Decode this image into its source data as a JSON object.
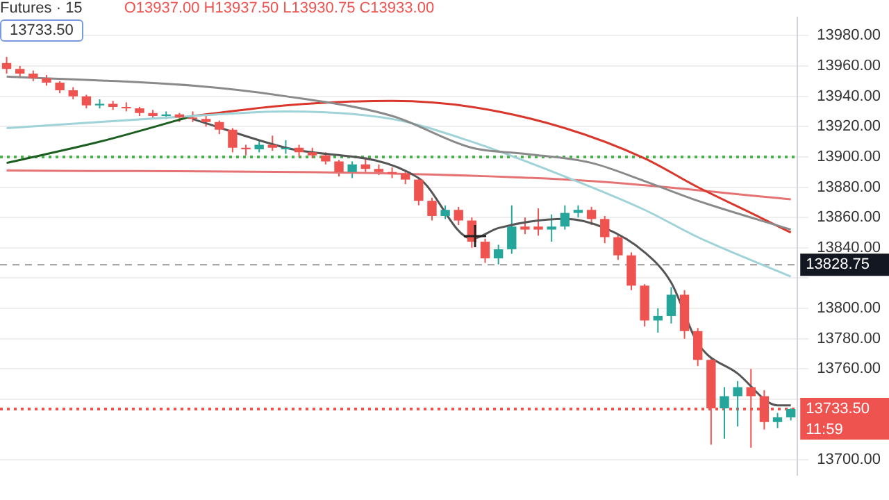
{
  "chart_data": {
    "type": "candlestick",
    "title": "Futures · 15",
    "categories": [
      null,
      null,
      null,
      null,
      null,
      null,
      null,
      null,
      null,
      null,
      null,
      null,
      null,
      null,
      null,
      null,
      null,
      null,
      null,
      null,
      null,
      null,
      null,
      null,
      null,
      null,
      null,
      null,
      null,
      null,
      null,
      null,
      null,
      null,
      null,
      null,
      null,
      null,
      null,
      null,
      null,
      null,
      null,
      null,
      null,
      null,
      null,
      null,
      null,
      null,
      null,
      null,
      null,
      null,
      null,
      null,
      null,
      null,
      null,
      null
    ],
    "ohlc": [
      [
        13962,
        13966,
        13955,
        13958
      ],
      [
        13958,
        13960,
        13952,
        13955
      ],
      [
        13955,
        13957,
        13950,
        13952
      ],
      [
        13952,
        13954,
        13947,
        13949
      ],
      [
        13949,
        13950,
        13942,
        13944
      ],
      [
        13944,
        13946,
        13938,
        13940
      ],
      [
        13940,
        13941,
        13932,
        13934
      ],
      [
        13934,
        13938,
        13932,
        13935
      ],
      [
        13935,
        13937,
        13931,
        13933
      ],
      [
        13933,
        13936,
        13930,
        13932
      ],
      [
        13932,
        13933,
        13927,
        13929
      ],
      [
        13929,
        13931,
        13925,
        13927
      ],
      [
        13927,
        13930,
        13925,
        13928
      ],
      [
        13928,
        13929,
        13923,
        13926
      ],
      [
        13926,
        13930,
        13923,
        13925
      ],
      [
        13925,
        13927,
        13920,
        13923
      ],
      [
        13923,
        13924,
        13915,
        13918
      ],
      [
        13918,
        13919,
        13903,
        13906
      ],
      [
        13906,
        13908,
        13901,
        13905
      ],
      [
        13905,
        13911,
        13903,
        13908
      ],
      [
        13908,
        13914,
        13904,
        13906
      ],
      [
        13905,
        13911,
        13902,
        13906
      ],
      [
        13906,
        13908,
        13900,
        13903
      ],
      [
        13903,
        13906,
        13899,
        13901
      ],
      [
        13901,
        13903,
        13895,
        13897
      ],
      [
        13897,
        13898,
        13887,
        13890
      ],
      [
        13890,
        13897,
        13886,
        13895
      ],
      [
        13895,
        13899,
        13890,
        13892
      ],
      [
        13892,
        13895,
        13888,
        13890
      ],
      [
        13890,
        13893,
        13886,
        13889
      ],
      [
        13889,
        13891,
        13882,
        13885
      ],
      [
        13885,
        13886,
        13868,
        13871
      ],
      [
        13871,
        13873,
        13858,
        13861
      ],
      [
        13861,
        13868,
        13859,
        13865
      ],
      [
        13865,
        13867,
        13855,
        13858
      ],
      [
        13858,
        13860,
        13840,
        13844
      ],
      [
        13844,
        13846,
        13830,
        13833
      ],
      [
        13833,
        13842,
        13829,
        13839
      ],
      [
        13839,
        13868,
        13836,
        13854
      ],
      [
        13854,
        13860,
        13849,
        13852
      ],
      [
        13854,
        13866,
        13848,
        13852
      ],
      [
        13852,
        13862,
        13844,
        13854
      ],
      [
        13854,
        13868,
        13852,
        13863
      ],
      [
        13863,
        13868,
        13860,
        13865
      ],
      [
        13865,
        13867,
        13855,
        13859
      ],
      [
        13859,
        13861,
        13843,
        13847
      ],
      [
        13847,
        13849,
        13832,
        13835
      ],
      [
        13835,
        13837,
        13812,
        13815
      ],
      [
        13815,
        13816,
        13788,
        13792
      ],
      [
        13792,
        13800,
        13784,
        13795
      ],
      [
        13795,
        13814,
        13790,
        13809
      ],
      [
        13809,
        13812,
        13780,
        13785
      ],
      [
        13785,
        13787,
        13762,
        13766
      ],
      [
        13766,
        13768,
        13710,
        13734
      ],
      [
        13734,
        13748,
        13714,
        13742
      ],
      [
        13742,
        13752,
        13722,
        13748
      ],
      [
        13748,
        13760,
        13708,
        13742
      ],
      [
        13742,
        13746,
        13720,
        13725
      ],
      [
        13725,
        13731,
        13721,
        13728
      ],
      [
        13728,
        13734,
        13726,
        13733.5
      ]
    ],
    "colors": [
      "#ef5350",
      "#ef5350",
      "#ef5350",
      "#ef5350",
      "#ef5350",
      "#ef5350",
      "#ef5350",
      "#26a69a",
      "#ef5350",
      "#ef5350",
      "#ef5350",
      "#ef5350",
      "#26a69a",
      "#ef5350",
      "#ef5350",
      "#ef5350",
      "#ef5350",
      "#ef5350",
      "#ef5350",
      "#26a69a",
      "#ef5350",
      "#26a69a",
      "#ef5350",
      "#ef5350",
      "#ef5350",
      "#ef5350",
      "#26a69a",
      "#ef5350",
      "#ef5350",
      "#ef5350",
      "#ef5350",
      "#ef5350",
      "#ef5350",
      "#26a69a",
      "#ef5350",
      "#ef5350",
      "#ef5350",
      "#26a69a",
      "#26a69a",
      "#ef5350",
      "#ef5350",
      "#26a69a",
      "#26a69a",
      "#26a69a",
      "#ef5350",
      "#ef5350",
      "#ef5350",
      "#ef5350",
      "#ef5350",
      "#26a69a",
      "#26a69a",
      "#ef5350",
      "#ef5350",
      "#ef5350",
      "#26a69a",
      "#26a69a",
      "#ef5350",
      "#ef5350",
      "#26a69a",
      "#26a69a"
    ],
    "series": [
      {
        "type": "line",
        "color": "#555555",
        "values": [
          null,
          null,
          null,
          null,
          null,
          null,
          null,
          null,
          null,
          null,
          null,
          null,
          null,
          null,
          13925,
          null,
          null,
          null,
          null,
          null,
          null,
          13906,
          null,
          null,
          null,
          null,
          null,
          null,
          null,
          null,
          null,
          13886,
          null,
          null,
          null,
          13846,
          null,
          13853,
          null,
          null,
          null,
          null,
          13859,
          null,
          null,
          13853,
          null,
          null,
          13837,
          null,
          13817,
          null,
          13777,
          null,
          null,
          13757,
          null,
          null,
          13736,
          13736
        ]
      },
      {
        "type": "line",
        "color": "#8a8a8a",
        "values": [
          13953,
          null,
          null,
          null,
          null,
          null,
          null,
          null,
          null,
          null,
          null,
          null,
          null,
          null,
          13947,
          null,
          null,
          null,
          null,
          null,
          null,
          13940,
          null,
          null,
          null,
          null,
          null,
          null,
          null,
          13927,
          null,
          null,
          null,
          null,
          null,
          13906,
          null,
          null,
          null,
          13902,
          null,
          null,
          null,
          null,
          13896,
          null,
          null,
          null,
          13884,
          null,
          null,
          null,
          13871,
          null,
          null,
          null,
          null,
          null,
          null,
          13852
        ]
      },
      {
        "type": "line",
        "color": "#9fd3d8",
        "values": [
          13919,
          null,
          null,
          null,
          null,
          null,
          null,
          null,
          null,
          null,
          null,
          null,
          null,
          null,
          13927,
          null,
          null,
          null,
          null,
          null,
          null,
          13930,
          null,
          null,
          null,
          null,
          null,
          null,
          null,
          13925,
          null,
          null,
          null,
          null,
          null,
          13910,
          null,
          null,
          null,
          null,
          null,
          null,
          13887,
          null,
          null,
          null,
          null,
          null,
          13865,
          null,
          null,
          null,
          13847,
          null,
          null,
          null,
          null,
          null,
          null,
          13821
        ]
      },
      {
        "type": "line",
        "color": "#d9362c",
        "values": [
          null,
          null,
          null,
          null,
          null,
          null,
          null,
          null,
          null,
          null,
          null,
          null,
          null,
          null,
          13927,
          null,
          null,
          null,
          null,
          null,
          null,
          13934,
          null,
          null,
          null,
          null,
          null,
          null,
          null,
          13937,
          null,
          null,
          null,
          null,
          null,
          13933,
          null,
          null,
          null,
          null,
          null,
          null,
          13919,
          null,
          null,
          null,
          null,
          null,
          13899,
          null,
          null,
          null,
          13880,
          null,
          null,
          null,
          13863,
          null,
          null,
          13850
        ]
      },
      {
        "type": "line",
        "color": "#1b5e20",
        "values": [
          13896,
          null,
          null,
          null,
          null,
          null,
          null,
          13910,
          null,
          null,
          null,
          null,
          null,
          null,
          13927,
          null,
          null,
          null,
          null,
          null,
          null,
          null,
          null,
          null,
          null,
          null,
          null,
          null,
          null,
          null,
          null,
          null,
          null,
          null,
          null,
          null,
          null,
          null,
          null,
          null,
          null,
          null,
          null,
          null,
          null,
          null,
          null,
          null,
          null,
          null,
          null,
          null,
          null,
          null,
          null,
          null,
          null,
          null,
          null,
          null
        ]
      },
      {
        "type": "line",
        "color": "#e57373",
        "values": [
          13891,
          null,
          null,
          null,
          null,
          null,
          null,
          null,
          null,
          null,
          null,
          null,
          null,
          null,
          null,
          null,
          null,
          null,
          null,
          null,
          null,
          null,
          null,
          null,
          null,
          null,
          null,
          null,
          null,
          13889,
          null,
          null,
          null,
          null,
          null,
          null,
          null,
          null,
          null,
          null,
          null,
          null,
          null,
          null,
          13884,
          null,
          null,
          null,
          null,
          null,
          null,
          null,
          null,
          null,
          null,
          null,
          null,
          null,
          null,
          13872
        ]
      }
    ],
    "ylim": [
      13690,
      13992
    ],
    "yticks": [
      {
        "value": 13700,
        "label": "13700.00"
      },
      {
        "value": 13740,
        "label": null
      },
      {
        "value": 13760,
        "label": "13760.00"
      },
      {
        "value": 13780,
        "label": "13780.00"
      },
      {
        "value": 13800,
        "label": "13800.00"
      },
      {
        "value": 13820,
        "label": null
      },
      {
        "value": 13840,
        "label": "13840.00"
      },
      {
        "value": 13860,
        "label": "13860.00"
      },
      {
        "value": 13880,
        "label": "13880.00"
      },
      {
        "value": 13900,
        "label": "13900.00"
      },
      {
        "value": 13920,
        "label": "13920.00"
      },
      {
        "value": 13940,
        "label": "13940.00"
      },
      {
        "value": 13960,
        "label": "13960.00"
      },
      {
        "value": 13980,
        "label": "13980.00"
      }
    ],
    "ref_lines": [
      {
        "axis": "y",
        "value": 13900,
        "color": "#4caf50",
        "line_style": "dotted"
      },
      {
        "axis": "y",
        "value": 13828.75,
        "label": "13828.75",
        "color": "#999999",
        "line_style": "dashed"
      },
      {
        "axis": "y",
        "value": 13733.5,
        "label": "13733.50",
        "color": "#ef5350",
        "line_style": "dotted"
      }
    ],
    "annotations": [
      "O13937.00 H13937.50 L13930.75 C13933.00",
      "13733.50",
      "11:59"
    ],
    "grid": "y",
    "legend": false,
    "tick_labels": "y"
  }
}
